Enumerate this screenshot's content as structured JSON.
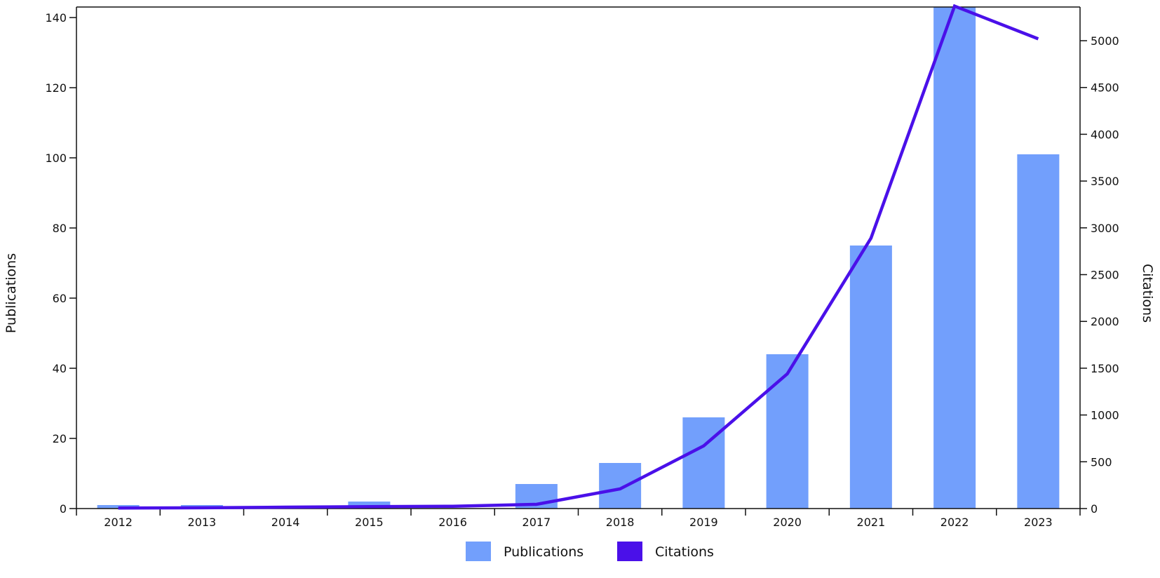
{
  "chart_data": {
    "type": "bar",
    "categories": [
      "2012",
      "2013",
      "2014",
      "2015",
      "2016",
      "2017",
      "2018",
      "2019",
      "2020",
      "2021",
      "2022",
      "2023"
    ],
    "series": [
      {
        "name": "Publications",
        "type": "bar",
        "axis": "left",
        "color": "#729ffc",
        "values": [
          1,
          1,
          0,
          2,
          0,
          7,
          13,
          26,
          44,
          75,
          143,
          101
        ]
      },
      {
        "name": "Citations",
        "type": "line",
        "axis": "right",
        "color": "#4a10e9",
        "values": [
          5,
          8,
          15,
          20,
          25,
          45,
          210,
          670,
          1440,
          2890,
          5370,
          5020
        ]
      }
    ],
    "ylabel": "Publications",
    "ylabel_right": "Citations",
    "ylim": [
      0,
      143
    ],
    "yticks": [
      "0",
      "20",
      "40",
      "60",
      "80",
      "100",
      "120",
      "140"
    ],
    "ylim_right": [
      0,
      5360
    ],
    "yticks_right": [
      "0",
      "500",
      "1000",
      "1500",
      "2000",
      "2500",
      "3000",
      "3500",
      "4000",
      "4500",
      "5000"
    ],
    "legend_position": "bottom-center",
    "grid": false
  }
}
